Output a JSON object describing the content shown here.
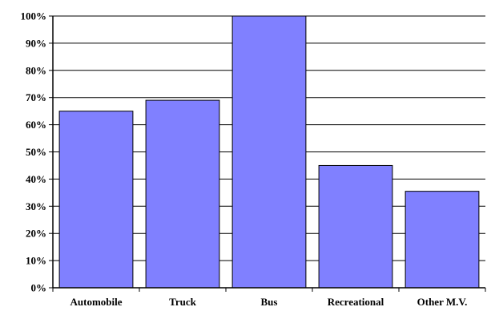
{
  "chart_data": {
    "type": "bar",
    "categories": [
      "Automobile",
      "Truck",
      "Bus",
      "Recreational",
      "Other M.V."
    ],
    "values": [
      65,
      69,
      100,
      45,
      35.5
    ],
    "ylim": [
      0,
      100
    ],
    "yticks": [
      "0%",
      "10%",
      "20%",
      "30%",
      "40%",
      "50%",
      "60%",
      "70%",
      "80%",
      "90%",
      "100%"
    ],
    "title": "",
    "xlabel": "",
    "ylabel": "",
    "grid": true,
    "legend": "none",
    "colors": {
      "bar": "#8080ff",
      "bar_edge": "#000000",
      "grid": "#000000",
      "axis": "#000000"
    }
  }
}
